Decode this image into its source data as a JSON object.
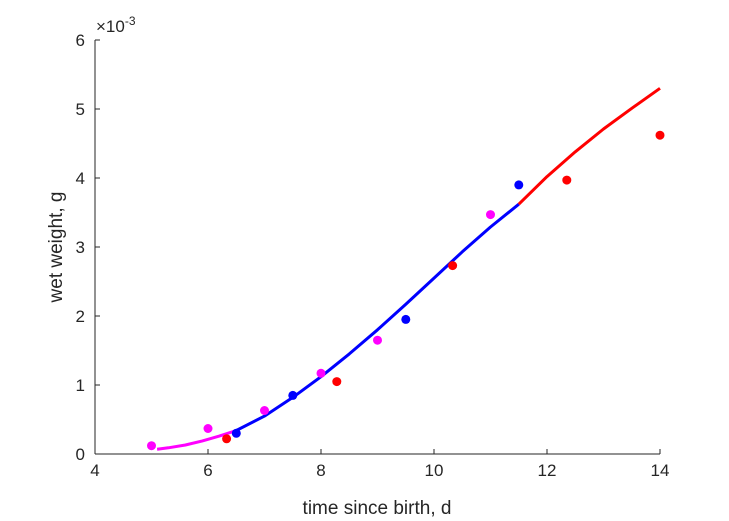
{
  "chart_data": {
    "type": "scatter",
    "xlabel": "time since birth, d",
    "ylabel": "wet weight, g",
    "exponent_label": "×10",
    "exponent_power": "-3",
    "xlim": [
      4,
      14
    ],
    "ylim": [
      0,
      6
    ],
    "x_ticks": [
      "4",
      "6",
      "8",
      "10",
      "12",
      "14"
    ],
    "y_ticks": [
      "0",
      "1",
      "2",
      "3",
      "4",
      "5",
      "6"
    ],
    "y_scale_factor": 0.001,
    "grid": false,
    "legend": "none",
    "series": [
      {
        "color": "#ff00ff",
        "points_x": [
          5.0,
          6.0,
          7.0,
          8.0,
          9.0,
          11.0
        ],
        "points_y": [
          0.12,
          0.37,
          0.63,
          1.17,
          1.65,
          3.47
        ],
        "curve_x": [
          5.1,
          5.3,
          5.6,
          5.9,
          6.2,
          6.5
        ],
        "curve_y": [
          0.07,
          0.09,
          0.13,
          0.19,
          0.26,
          0.34
        ]
      },
      {
        "color": "#0000ff",
        "points_x": [
          6.5,
          7.5,
          9.5,
          11.5
        ],
        "points_y": [
          0.3,
          0.85,
          1.95,
          3.9
        ],
        "curve_x": [
          6.5,
          7.0,
          7.5,
          8.0,
          8.5,
          9.0,
          9.5,
          10.0,
          10.5,
          11.0,
          11.5
        ],
        "curve_y": [
          0.34,
          0.55,
          0.82,
          1.12,
          1.45,
          1.8,
          2.17,
          2.55,
          2.93,
          3.29,
          3.62
        ]
      },
      {
        "color": "#ff0000",
        "points_x": [
          6.33,
          8.28,
          10.33,
          12.35,
          14.0
        ],
        "points_y": [
          0.22,
          1.05,
          2.73,
          3.97,
          4.62
        ],
        "curve_x": [
          11.5,
          12.0,
          12.5,
          13.0,
          13.5,
          14.0
        ],
        "curve_y": [
          3.62,
          4.02,
          4.38,
          4.71,
          5.01,
          5.3
        ]
      }
    ]
  }
}
